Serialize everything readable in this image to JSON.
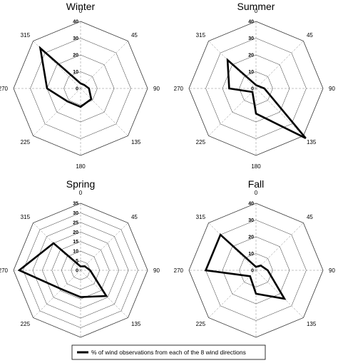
{
  "chart_data": [
    {
      "type": "radar",
      "title": "Winter",
      "rmax": 40,
      "ring_step": 10,
      "ring_labels": [
        "0",
        "10",
        "20",
        "30",
        "40"
      ],
      "directions": [
        "0",
        "45",
        "90",
        "135",
        "180",
        "225",
        "270",
        "315"
      ],
      "series": [
        {
          "name": "% of wind observations from each of the 8 wind directions",
          "values": [
            3,
            3,
            5,
            9,
            11,
            11,
            20,
            34
          ]
        }
      ]
    },
    {
      "type": "radar",
      "title": "Summer",
      "rmax": 40,
      "ring_step": 10,
      "ring_labels": [
        "0",
        "10",
        "20",
        "30",
        "40"
      ],
      "directions": [
        "0",
        "45",
        "90",
        "135",
        "180",
        "225",
        "270",
        "315"
      ],
      "series": [
        {
          "name": "% of wind observations from each of the 8 wind directions",
          "values": [
            2,
            2,
            5,
            42,
            15,
            3,
            16,
            24
          ]
        }
      ]
    },
    {
      "type": "radar",
      "title": "Spring",
      "rmax": 35,
      "ring_step": 5,
      "ring_labels": [
        "0",
        "5",
        "10",
        "15",
        "20",
        "25",
        "30",
        "35"
      ],
      "directions": [
        "0",
        "45",
        "90",
        "135",
        "180",
        "225",
        "270",
        "315"
      ],
      "series": [
        {
          "name": "% of wind observations from each of the 8 wind directions",
          "values": [
            2,
            3,
            5,
            19,
            14,
            14,
            32,
            20
          ]
        }
      ]
    },
    {
      "type": "radar",
      "title": "Fall",
      "rmax": 40,
      "ring_step": 10,
      "ring_labels": [
        "0",
        "10",
        "20",
        "30",
        "40"
      ],
      "directions": [
        "0",
        "45",
        "90",
        "135",
        "180",
        "225",
        "270",
        "315"
      ],
      "series": [
        {
          "name": "% of wind observations from each of the 8 wind directions",
          "values": [
            2,
            4,
            7,
            24,
            14,
            5,
            30,
            30
          ]
        }
      ]
    }
  ],
  "legend": {
    "label": "% of wind observations from each of the 8 wind directions",
    "position": "bottom"
  }
}
